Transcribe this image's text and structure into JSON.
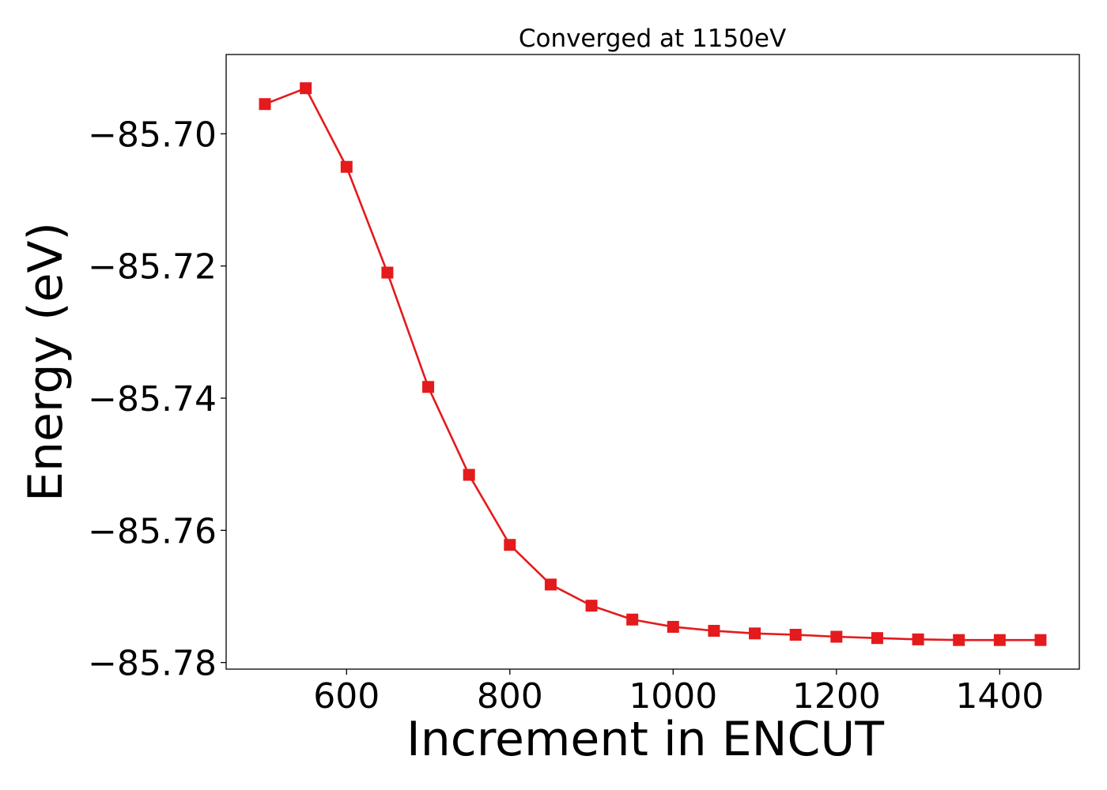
{
  "chart_data": {
    "type": "line",
    "title": "Converged at 1150eV",
    "xlabel": "Increment in ENCUT",
    "ylabel": "Energy (eV)",
    "xlim": [
      452.5,
      1497.5
    ],
    "ylim": [
      -85.781,
      -85.688
    ],
    "xticks": [
      600,
      800,
      1000,
      1200,
      1400
    ],
    "xtick_labels": [
      "600",
      "800",
      "1000",
      "1200",
      "1400"
    ],
    "yticks": [
      -85.7,
      -85.72,
      -85.74,
      -85.76,
      -85.78
    ],
    "ytick_labels": [
      "−85.70",
      "−85.72",
      "−85.74",
      "−85.76",
      "−85.78"
    ],
    "grid": false,
    "series": [
      {
        "color": "#e41a1c",
        "marker": "square",
        "x": [
          500,
          550,
          600,
          650,
          700,
          750,
          800,
          850,
          900,
          950,
          1000,
          1050,
          1100,
          1150,
          1200,
          1250,
          1300,
          1350,
          1400,
          1450
        ],
        "y": [
          -85.6955,
          -85.6931,
          -85.705,
          -85.721,
          -85.7383,
          -85.7516,
          -85.7622,
          -85.7682,
          -85.7714,
          -85.7735,
          -85.7746,
          -85.7752,
          -85.7756,
          -85.7758,
          -85.7761,
          -85.7763,
          -85.7765,
          -85.7766,
          -85.7766,
          -85.7766
        ]
      }
    ]
  }
}
